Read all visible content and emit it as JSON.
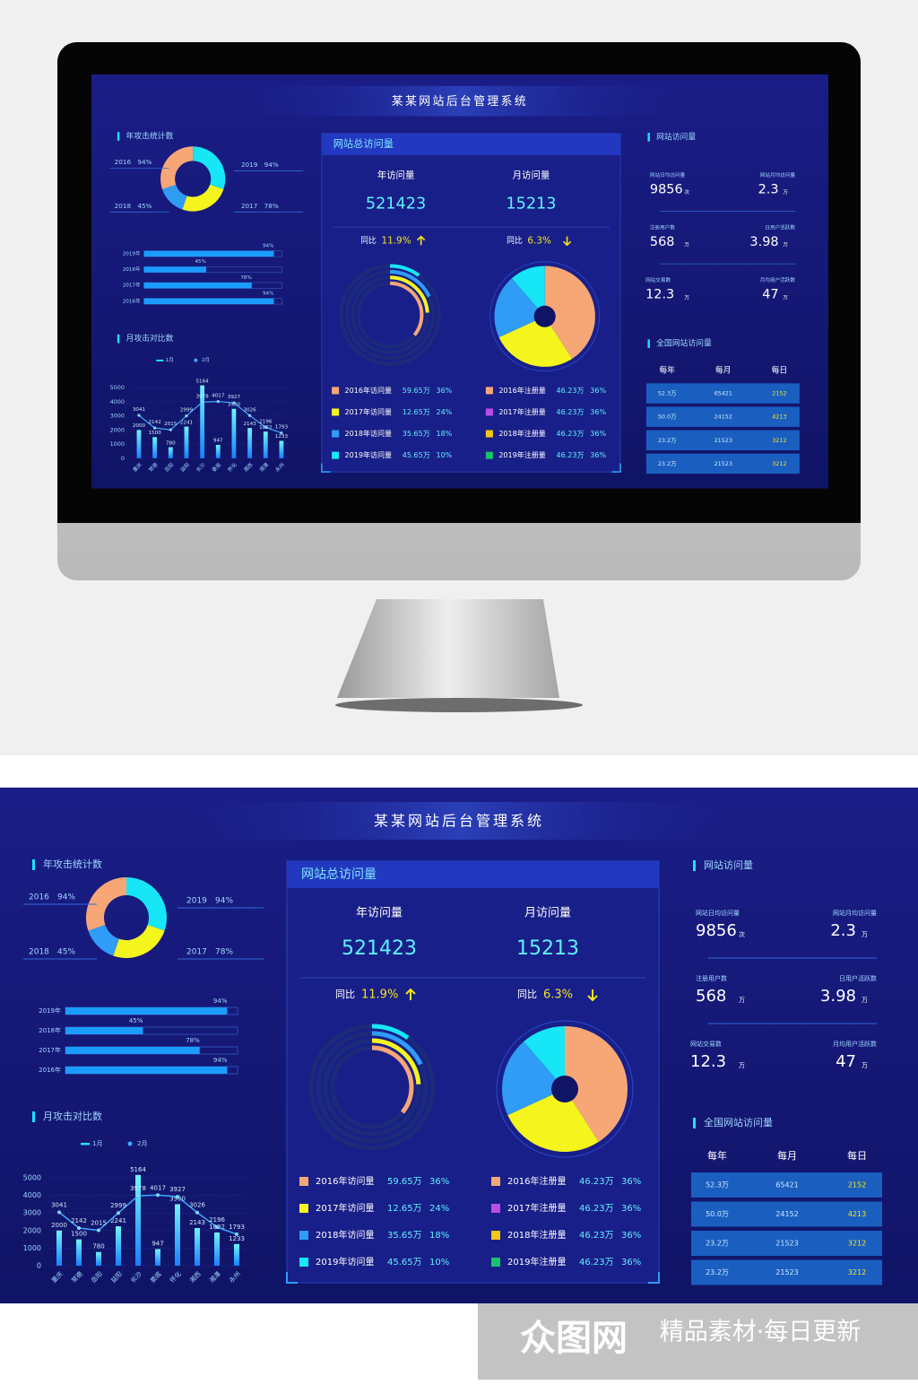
{
  "title": "某某网站后台管理系统",
  "yearly_attacks": {
    "title": "年攻击统计数",
    "donut": {
      "labels": [
        "2019",
        "2017",
        "2018",
        "2016"
      ],
      "values": [
        94,
        78,
        45,
        94
      ],
      "value_labels": [
        "94%",
        "78%",
        "45%",
        "94%"
      ],
      "colors": [
        "#16e6f5",
        "#f5f51e",
        "#2f9cf5",
        "#f7a676"
      ]
    },
    "bars": {
      "categories": [
        "2019年",
        "2018年",
        "2017年",
        "2016年"
      ],
      "values": [
        94,
        45,
        78,
        94
      ],
      "value_labels": [
        "94%",
        "45%",
        "78%",
        "94%"
      ],
      "xlim": [
        0,
        100
      ],
      "color": "#1a9cff"
    }
  },
  "monthly_attacks": {
    "title": "月攻击对比数",
    "type": "bar",
    "categories": [
      "重庆",
      "常德",
      "岳阳",
      "益阳",
      "长沙",
      "娄底",
      "怀化",
      "湘西",
      "湘潭",
      "永州"
    ],
    "series": [
      {
        "name": "1月",
        "color": "#1ee0ff",
        "values": [
          2000,
          1500,
          780,
          2241,
          5164,
          947,
          3500,
          2143,
          1892,
          1233
        ]
      },
      {
        "name": "2月",
        "color": "#3fa9ff",
        "type": "line",
        "values": [
          3041,
          2142,
          2015,
          2999,
          3978,
          4017,
          3927,
          3026,
          2196,
          1793
        ]
      }
    ],
    "ylim": [
      0,
      5000
    ],
    "yticks": [
      0,
      1000,
      2000,
      3000,
      4000,
      5000
    ]
  },
  "total_visits": {
    "title": "网站总访问量",
    "stats": [
      {
        "label": "年访问量",
        "value": 521423
      },
      {
        "label": "月访问量",
        "value": 15213
      }
    ],
    "yoy": [
      {
        "label": "同比",
        "value": 11.9,
        "value_label": "11.9%",
        "direction": "up"
      },
      {
        "label": "同比",
        "value": 6.3,
        "value_label": "6.3%",
        "direction": "down"
      }
    ],
    "visits": [
      {
        "name": "2016年访问量",
        "amount": "59.65万",
        "value": 36,
        "value_label": "36%",
        "color": "#f7a676"
      },
      {
        "name": "2017年访问量",
        "amount": "12.65万",
        "value": 24,
        "value_label": "24%",
        "color": "#f5f51e"
      },
      {
        "name": "2018年访问量",
        "amount": "35.65万",
        "value": 18,
        "value_label": "18%",
        "color": "#2f9cf5"
      },
      {
        "name": "2019年访问量",
        "amount": "45.65万",
        "value": 10,
        "value_label": "10%",
        "color": "#16e6f5"
      }
    ],
    "registers": [
      {
        "name": "2016年注册量",
        "amount": "46.23万",
        "value": 36,
        "value_label": "36%",
        "color": "#f7a676"
      },
      {
        "name": "2017年注册量",
        "amount": "46.23万",
        "value": 36,
        "value_label": "36%",
        "color": "#b84de8"
      },
      {
        "name": "2018年注册量",
        "amount": "46.23万",
        "value": 36,
        "value_label": "36%",
        "color": "#f5c518"
      },
      {
        "name": "2019年注册量",
        "amount": "46.23万",
        "value": 36,
        "value_label": "36%",
        "color": "#19c26b"
      }
    ]
  },
  "site_visits": {
    "title": "网站访问量",
    "stats": [
      {
        "label": "网站日均访问量",
        "value": 9856,
        "unit": "次"
      },
      {
        "label": "网站月均访问量",
        "value": 2.3,
        "unit": "万"
      },
      {
        "label": "注册用户数",
        "value": 568,
        "unit": "万"
      },
      {
        "label": "日用户活跃数",
        "value": 3.98,
        "unit": "万"
      },
      {
        "label": "网站交易数",
        "value": 12.3,
        "unit": "万"
      },
      {
        "label": "月均用户活跃数",
        "value": 47,
        "unit": "万"
      }
    ]
  },
  "national_visits": {
    "title": "全国网站访问量",
    "columns": [
      "每年",
      "每月",
      "每日"
    ],
    "rows": [
      [
        "52.3万",
        "65421",
        "2152"
      ],
      [
        "50.0万",
        "24152",
        "4213"
      ],
      [
        "23.2万",
        "21523",
        "3212"
      ],
      [
        "23.2万",
        "21523",
        "3212"
      ]
    ]
  },
  "watermark": {
    "logo": "众图网",
    "text": "精品素材·每日更新"
  }
}
